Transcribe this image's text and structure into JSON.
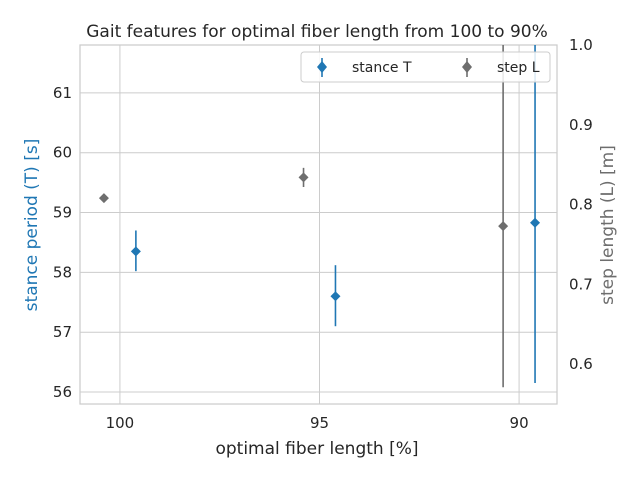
{
  "chart_data": {
    "type": "scatter",
    "title": "Gait features for optimal fiber length from 100 to 90%",
    "xlabel": "optimal fiber length [%]",
    "ylabel_left": "stance period (T) [s]",
    "ylabel_right": "step length (L) [m]",
    "x_ticks": [
      "100",
      "95",
      "90"
    ],
    "x_tick_values": [
      100,
      95,
      90
    ],
    "x_range": [
      101,
      89.05
    ],
    "y_left_ticks": [
      "56",
      "57",
      "58",
      "59",
      "60",
      "61"
    ],
    "y_left_tick_values": [
      56,
      57,
      58,
      59,
      60,
      61
    ],
    "y_left_range": [
      55.8,
      61.8
    ],
    "y_right_ticks": [
      "0.6",
      "0.7",
      "0.8",
      "0.9",
      "1.0"
    ],
    "y_right_tick_values": [
      0.6,
      0.7,
      0.8,
      0.9,
      1.0
    ],
    "y_right_range": [
      0.55,
      1.0
    ],
    "grid": true,
    "legend_position": "top-right",
    "series": [
      {
        "name": "stance T",
        "axis": "left",
        "color": "#1f77b4",
        "points": [
          {
            "x": 99.6,
            "y": 58.35,
            "err_low": 58.02,
            "err_high": 58.7
          },
          {
            "x": 94.6,
            "y": 57.6,
            "err_low": 57.1,
            "err_high": 58.12
          },
          {
            "x": 89.6,
            "y": 58.83,
            "err_low": 56.15,
            "err_high": 61.8
          }
        ]
      },
      {
        "name": "step L",
        "axis": "right",
        "color": "#6e6e6e",
        "points": [
          {
            "x": 100.4,
            "y": 0.808,
            "err_low": 0.804,
            "err_high": 0.813
          },
          {
            "x": 95.4,
            "y": 0.834,
            "err_low": 0.822,
            "err_high": 0.846
          },
          {
            "x": 90.4,
            "y": 0.773,
            "err_low": 0.571,
            "err_high": 1.0
          }
        ]
      }
    ]
  }
}
